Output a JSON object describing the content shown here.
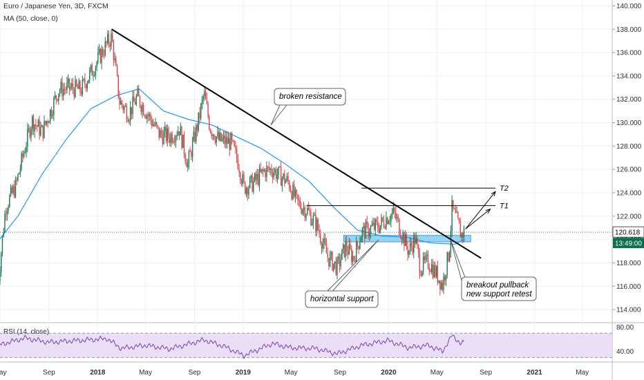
{
  "header": {
    "symbol_line": "Euro / Japanese Yen, 3D, FXCM",
    "ma_line": "MA (50, close, 0)",
    "rsi_line": "RSI (14, close)"
  },
  "price_badge": {
    "price": "120.618",
    "countdown": "13:49:00"
  },
  "annotations": {
    "broken_resistance": "broken resistance",
    "horizontal_support": "horizontal support",
    "breakout_line1": "breakout pullback",
    "breakout_line2": "new support retest",
    "t1": "T1",
    "t2": "T2"
  },
  "colors": {
    "bull": "#1b7a4e",
    "bear": "#e0424b",
    "ma": "#2196f3",
    "rsi": "#7b3fb8",
    "rsi_band": "#e6d9f4",
    "support_zone": "#87ceeb",
    "trendline": "#000000"
  },
  "chart_data": [
    {
      "type": "candlestick",
      "symbol": "Euro / Japanese Yen",
      "timeframe": "3D",
      "source": "FXCM",
      "indicator": "MA (50, close, 0)",
      "y_axis": {
        "ticks": [
          114,
          116,
          118,
          120,
          122,
          124,
          126,
          128,
          130,
          132,
          134,
          136,
          138,
          140
        ],
        "tick_labels": [
          "114.000",
          "116.000",
          "118.000",
          "120.000",
          "122.000",
          "124.000",
          "126.000",
          "128.000",
          "130.000",
          "132.000",
          "134.000",
          "136.000",
          "138.000",
          "140.000"
        ],
        "ylim": [
          113.0,
          140.5
        ]
      },
      "x_axis": {
        "range": [
          "2017-05-01",
          "2021-07-15"
        ],
        "tick_labels": [
          "May",
          "Sep",
          "2018",
          "May",
          "Sep",
          "2019",
          "May",
          "Sep",
          "2020",
          "May",
          "Sep",
          "2021",
          "May"
        ],
        "tick_dates": [
          "2017-05-01",
          "2017-09-01",
          "2018-01-01",
          "2018-05-01",
          "2018-09-01",
          "2019-01-01",
          "2019-05-01",
          "2019-09-01",
          "2020-01-01",
          "2020-05-01",
          "2020-09-01",
          "2021-01-01",
          "2021-05-01"
        ]
      },
      "price_path": [
        [
          "2017-04-25",
          115.8
        ],
        [
          "2017-05-15",
          122.8
        ],
        [
          "2017-06-10",
          124.6
        ],
        [
          "2017-06-25",
          126.8
        ],
        [
          "2017-07-20",
          130.2
        ],
        [
          "2017-08-15",
          129.2
        ],
        [
          "2017-09-05",
          131.0
        ],
        [
          "2017-09-25",
          132.8
        ],
        [
          "2017-10-20",
          133.0
        ],
        [
          "2017-11-20",
          132.8
        ],
        [
          "2017-12-20",
          134.6
        ],
        [
          "2018-01-25",
          136.8
        ],
        [
          "2018-02-05",
          137.3
        ],
        [
          "2018-02-25",
          131.8
        ],
        [
          "2018-03-20",
          130.8
        ],
        [
          "2018-04-10",
          132.2
        ],
        [
          "2018-05-05",
          130.8
        ],
        [
          "2018-06-05",
          129.0
        ],
        [
          "2018-07-01",
          128.8
        ],
        [
          "2018-07-25",
          129.5
        ],
        [
          "2018-08-15",
          126.4
        ],
        [
          "2018-09-10",
          130.0
        ],
        [
          "2018-09-25",
          132.5
        ],
        [
          "2018-10-10",
          129.6
        ],
        [
          "2018-11-01",
          128.5
        ],
        [
          "2018-12-01",
          128.3
        ],
        [
          "2018-12-20",
          126.6
        ],
        [
          "2019-01-03",
          124.5
        ],
        [
          "2019-01-25",
          124.8
        ],
        [
          "2019-02-25",
          125.9
        ],
        [
          "2019-03-15",
          126.0
        ],
        [
          "2019-04-05",
          125.4
        ],
        [
          "2019-04-25",
          124.9
        ],
        [
          "2019-05-15",
          123.2
        ],
        [
          "2019-06-10",
          122.5
        ],
        [
          "2019-07-05",
          121.2
        ],
        [
          "2019-08-01",
          118.5
        ],
        [
          "2019-08-25",
          117.6
        ],
        [
          "2019-09-15",
          119.4
        ],
        [
          "2019-10-05",
          118.4
        ],
        [
          "2019-10-25",
          120.6
        ],
        [
          "2019-11-15",
          120.9
        ],
        [
          "2019-12-10",
          121.2
        ],
        [
          "2019-12-30",
          122.0
        ],
        [
          "2020-01-15",
          122.2
        ],
        [
          "2020-02-05",
          120.4
        ],
        [
          "2020-02-20",
          119.0
        ],
        [
          "2020-03-08",
          120.1
        ],
        [
          "2020-03-20",
          117.6
        ],
        [
          "2020-04-10",
          118.1
        ],
        [
          "2020-05-01",
          117.0
        ],
        [
          "2020-05-15",
          116.1
        ],
        [
          "2020-06-01",
          119.0
        ],
        [
          "2020-06-08",
          122.6
        ],
        [
          "2020-06-20",
          121.6
        ],
        [
          "2020-07-01",
          120.4
        ],
        [
          "2020-07-10",
          120.7
        ]
      ],
      "moving_average": [
        [
          "2017-04-25",
          119.8
        ],
        [
          "2017-06-15",
          122.0
        ],
        [
          "2017-08-15",
          125.6
        ],
        [
          "2017-10-15",
          128.6
        ],
        [
          "2017-12-15",
          131.2
        ],
        [
          "2018-02-15",
          132.3
        ],
        [
          "2018-04-15",
          132.9
        ],
        [
          "2018-06-15",
          131.0
        ],
        [
          "2018-08-15",
          130.3
        ],
        [
          "2018-10-15",
          129.8
        ],
        [
          "2018-12-15",
          128.8
        ],
        [
          "2019-02-15",
          127.8
        ],
        [
          "2019-04-15",
          126.5
        ],
        [
          "2019-06-15",
          125.0
        ],
        [
          "2019-08-15",
          122.8
        ],
        [
          "2019-10-15",
          120.8
        ],
        [
          "2019-12-15",
          120.3
        ],
        [
          "2020-02-15",
          120.2
        ],
        [
          "2020-04-15",
          119.7
        ],
        [
          "2020-06-15",
          119.6
        ],
        [
          "2020-07-10",
          120.0
        ]
      ],
      "annotations": {
        "last_price": 120.618,
        "countdown": "13:49:00",
        "descending_trendline": [
          [
            "2018-02-05",
            138.0
          ],
          [
            "2020-08-20",
            118.4
          ]
        ],
        "support_zone": {
          "from": "2019-09-10",
          "to": "2020-07-25",
          "low": 119.8,
          "high": 120.35
        },
        "target_T1": {
          "label": "T1",
          "price": 122.9,
          "from": "2019-06-10",
          "to": "2020-09-25"
        },
        "target_T2": {
          "label": "T2",
          "price": 124.4,
          "from": "2019-10-25",
          "to": "2020-09-25"
        },
        "notes": [
          "broken resistance",
          "horizontal support",
          "breakout pullback",
          "new support retest"
        ]
      }
    },
    {
      "type": "line",
      "indicator": "RSI (14, close)",
      "y_axis": {
        "ticks": [
          40,
          80
        ],
        "tick_labels": [
          "40.00",
          "80.00"
        ],
        "ylim": [
          27,
          84
        ],
        "band": [
          30,
          70
        ]
      },
      "rsi_path": [
        [
          "2017-04-25",
          50
        ],
        [
          "2017-07-01",
          62
        ],
        [
          "2017-09-01",
          55
        ],
        [
          "2018-01-25",
          61
        ],
        [
          "2018-03-01",
          45
        ],
        [
          "2018-05-01",
          50
        ],
        [
          "2018-07-01",
          44
        ],
        [
          "2018-09-25",
          59
        ],
        [
          "2018-11-15",
          48
        ],
        [
          "2019-01-03",
          33
        ],
        [
          "2019-03-15",
          53
        ],
        [
          "2019-05-01",
          46
        ],
        [
          "2019-07-01",
          45
        ],
        [
          "2019-08-25",
          36
        ],
        [
          "2019-10-25",
          50
        ],
        [
          "2019-12-30",
          58
        ],
        [
          "2020-02-20",
          46
        ],
        [
          "2020-04-10",
          50
        ],
        [
          "2020-05-15",
          40
        ],
        [
          "2020-06-08",
          66
        ],
        [
          "2020-07-01",
          53
        ],
        [
          "2020-07-10",
          55
        ]
      ]
    }
  ]
}
